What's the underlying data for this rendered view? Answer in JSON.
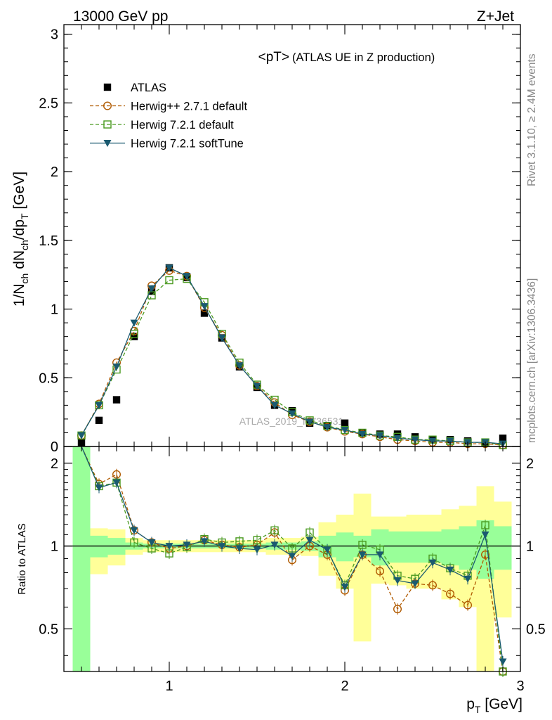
{
  "header": {
    "left": "13000 GeV pp",
    "right": "Z+Jet"
  },
  "title_main": "<pT>",
  "title_sub": "(ATLAS UE in Z production)",
  "side_text_1": "Rivet 3.1.10, ≥ 2.4M events",
  "side_text_2": "mcplots.cern.ch [arXiv:1306.3436]",
  "watermark": "ATLAS_2019_I1736531",
  "colors": {
    "atlas": "#000000",
    "herwigpp": "#b05a00",
    "herwig721": "#4a9a20",
    "softtune": "#1a5a70",
    "band_green": "#99ff99",
    "band_yellow": "#ffff99"
  },
  "chart_data": [
    {
      "type": "scatter",
      "xlabel": "p_T [GeV]",
      "ylabel": "1/N_ch dN_ch/dp_T [GeV]",
      "xlim": [
        0.4,
        3.0
      ],
      "ylim": [
        0,
        3.07
      ],
      "yticks": [
        0,
        0.5,
        1,
        1.5,
        2,
        2.5,
        3
      ],
      "ytick_labels": [
        "0",
        "0.5",
        "1",
        "1.5",
        "2",
        "2.5",
        "3"
      ],
      "legend_position": "top-left",
      "x": [
        0.5,
        0.6,
        0.7,
        0.8,
        0.9,
        1.0,
        1.1,
        1.2,
        1.3,
        1.4,
        1.5,
        1.6,
        1.7,
        1.8,
        1.9,
        2.0,
        2.1,
        2.2,
        2.3,
        2.4,
        2.5,
        2.6,
        2.7,
        2.8,
        2.9
      ],
      "series": [
        {
          "name": "ATLAS",
          "marker": "square-filled",
          "values": [
            0.03,
            0.19,
            0.34,
            0.8,
            1.13,
            1.3,
            1.23,
            0.97,
            0.79,
            0.58,
            0.43,
            0.3,
            0.26,
            0.17,
            0.15,
            0.17,
            0.1,
            0.09,
            0.09,
            0.07,
            0.05,
            0.05,
            0.04,
            0.03,
            0.06
          ]
        },
        {
          "name": "Herwig++ 2.7.1 default",
          "marker": "circle-open",
          "values": [
            0.08,
            0.31,
            0.61,
            0.84,
            1.17,
            1.28,
            1.24,
            1.01,
            0.81,
            0.59,
            0.44,
            0.32,
            0.23,
            0.18,
            0.14,
            0.11,
            0.09,
            0.07,
            0.05,
            0.04,
            0.03,
            0.03,
            0.02,
            0.02,
            0.01
          ]
        },
        {
          "name": "Herwig 7.2.1 default",
          "marker": "square-open",
          "values": [
            0.08,
            0.3,
            0.56,
            0.82,
            1.1,
            1.21,
            1.22,
            1.05,
            0.82,
            0.61,
            0.45,
            0.34,
            0.25,
            0.19,
            0.15,
            0.12,
            0.1,
            0.08,
            0.07,
            0.05,
            0.05,
            0.04,
            0.03,
            0.03,
            0.01
          ]
        },
        {
          "name": "Herwig 7.2.1 softTune",
          "marker": "triangle-down-filled",
          "values": [
            0.08,
            0.3,
            0.58,
            0.9,
            1.15,
            1.3,
            1.24,
            1.02,
            0.79,
            0.59,
            0.44,
            0.3,
            0.24,
            0.18,
            0.14,
            0.12,
            0.09,
            0.08,
            0.06,
            0.05,
            0.04,
            0.04,
            0.03,
            0.03,
            0.02
          ]
        }
      ]
    },
    {
      "type": "line",
      "ylabel": "Ratio to ATLAS",
      "xlabel": "p_T [GeV]",
      "xlim": [
        0.4,
        3.0
      ],
      "ylim": [
        0.35,
        2.3
      ],
      "xticks": [
        1,
        2,
        3
      ],
      "xtick_labels": [
        "1",
        "2",
        "3"
      ],
      "yticks": [
        0.5,
        1,
        2
      ],
      "ytick_labels": [
        "0.5",
        "1",
        "2"
      ],
      "reference_line": 1,
      "bands": {
        "edges": [
          0.45,
          0.55,
          0.65,
          0.75,
          0.85,
          0.95,
          1.05,
          1.15,
          1.25,
          1.35,
          1.45,
          1.55,
          1.65,
          1.75,
          1.85,
          1.95,
          2.05,
          2.15,
          2.25,
          2.35,
          2.45,
          2.55,
          2.65,
          2.75,
          2.85,
          2.95
        ],
        "green_low": [
          0.35,
          0.91,
          0.93,
          0.97,
          0.98,
          0.98,
          0.98,
          0.98,
          0.98,
          0.98,
          0.98,
          0.97,
          0.97,
          0.96,
          0.91,
          0.88,
          0.91,
          0.85,
          0.87,
          0.87,
          0.87,
          0.85,
          0.82,
          0.76,
          0.82
        ],
        "green_high": [
          2.3,
          1.09,
          1.07,
          1.03,
          1.02,
          1.02,
          1.02,
          1.02,
          1.02,
          1.02,
          1.02,
          1.03,
          1.03,
          1.04,
          1.09,
          1.12,
          1.09,
          1.15,
          1.13,
          1.13,
          1.13,
          1.15,
          1.18,
          1.24,
          1.18
        ],
        "yellow_low": [
          0.35,
          0.79,
          0.85,
          0.93,
          0.95,
          0.95,
          0.95,
          0.95,
          0.95,
          0.95,
          0.95,
          0.93,
          0.93,
          0.92,
          0.78,
          0.7,
          0.45,
          0.73,
          0.72,
          0.7,
          0.7,
          0.64,
          0.6,
          0.35,
          0.55
        ],
        "yellow_high": [
          2.3,
          1.16,
          1.15,
          1.07,
          1.05,
          1.05,
          1.05,
          1.05,
          1.05,
          1.05,
          1.05,
          1.07,
          1.07,
          1.08,
          1.22,
          1.3,
          1.55,
          1.28,
          1.28,
          1.3,
          1.3,
          1.36,
          1.4,
          1.65,
          1.45
        ]
      },
      "x": [
        0.5,
        0.6,
        0.7,
        0.8,
        0.9,
        1.0,
        1.1,
        1.2,
        1.3,
        1.4,
        1.5,
        1.6,
        1.7,
        1.8,
        1.9,
        2.0,
        2.1,
        2.2,
        2.3,
        2.4,
        2.5,
        2.6,
        2.7,
        2.8,
        2.9
      ],
      "series": [
        {
          "name": "Herwig++ 2.7.1 default",
          "values": [
            2.7,
            1.68,
            1.82,
            1.14,
            1.03,
            0.98,
            1.0,
            1.05,
            1.01,
            0.99,
            1.01,
            1.12,
            0.89,
            1.0,
            0.93,
            0.69,
            0.93,
            0.81,
            0.59,
            0.73,
            0.72,
            0.67,
            0.61,
            0.93,
            0.35
          ]
        },
        {
          "name": "Herwig 7.2.1 default",
          "values": [
            2.7,
            1.65,
            1.7,
            1.03,
            0.98,
            0.94,
            0.99,
            1.06,
            1.03,
            1.04,
            1.05,
            1.14,
            0.98,
            1.12,
            0.97,
            0.72,
            1.01,
            0.97,
            0.78,
            0.76,
            0.9,
            0.83,
            0.78,
            1.19,
            0.35
          ]
        },
        {
          "name": "Herwig 7.2.1 softTune",
          "values": [
            2.7,
            1.63,
            1.7,
            1.14,
            1.03,
            1.0,
            1.01,
            1.04,
            1.0,
            0.98,
            0.97,
            1.01,
            0.92,
            1.05,
            0.97,
            0.71,
            0.93,
            0.93,
            0.75,
            0.73,
            0.87,
            0.82,
            0.76,
            1.1,
            0.38
          ]
        }
      ]
    }
  ]
}
